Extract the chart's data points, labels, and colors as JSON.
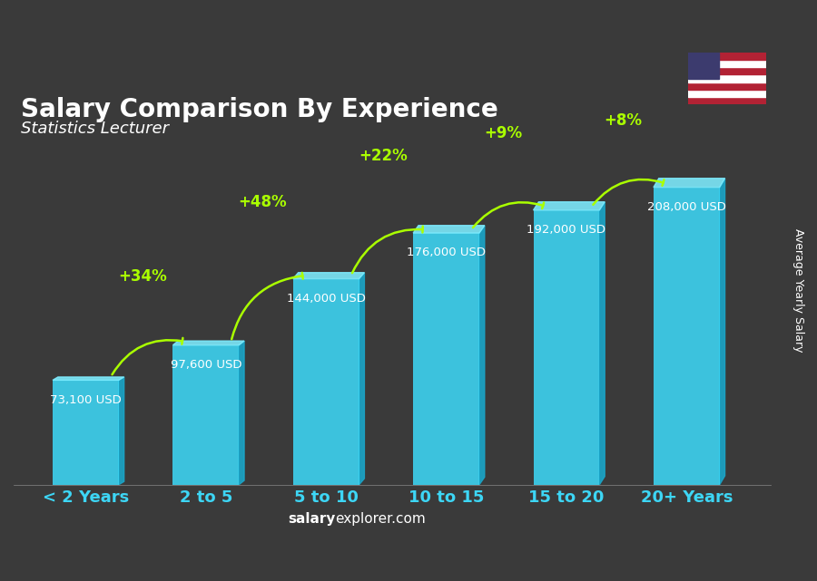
{
  "title": "Salary Comparison By Experience",
  "subtitle": "Statistics Lecturer",
  "categories": [
    "< 2 Years",
    "2 to 5",
    "5 to 10",
    "10 to 15",
    "15 to 20",
    "20+ Years"
  ],
  "values": [
    73100,
    97600,
    144000,
    176000,
    192000,
    208000
  ],
  "labels": [
    "73,100 USD",
    "97,600 USD",
    "144,000 USD",
    "176,000 USD",
    "192,000 USD",
    "208,000 USD"
  ],
  "pct_labels": [
    "+34%",
    "+48%",
    "+22%",
    "+9%",
    "+8%"
  ],
  "bar_color_top": "#00d4ff",
  "bar_color_mid": "#00aadd",
  "bar_color_bottom": "#0077aa",
  "background_color": "#3a3a3a",
  "title_color": "#ffffff",
  "subtitle_color": "#ffffff",
  "label_color": "#ffffff",
  "pct_color": "#aaff00",
  "xlabel_color": "#00ccff",
  "footer_text": "salaryexplorer.com",
  "ylabel_text": "Average Yearly Salary",
  "ylim": [
    0,
    240000
  ],
  "figsize": [
    9.0,
    6.41
  ],
  "dpi": 100
}
